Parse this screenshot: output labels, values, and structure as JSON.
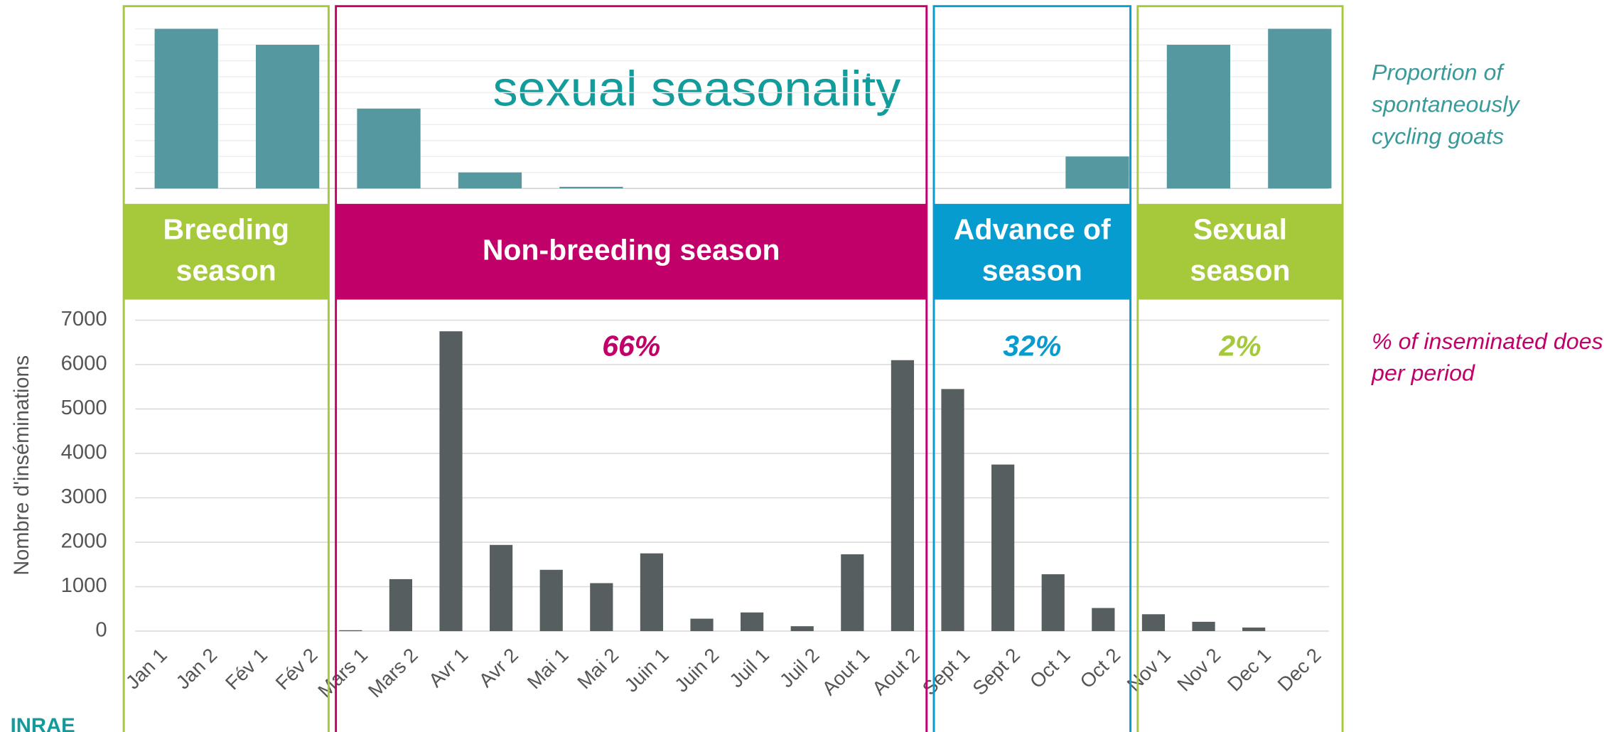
{
  "chart_data": [
    {
      "type": "bar",
      "title": "sexual seasonality",
      "values": [
        100,
        90,
        50,
        10,
        1,
        0,
        0,
        0,
        0,
        20,
        90,
        100
      ],
      "color": "#55989f",
      "ylim": [
        0,
        100
      ]
    },
    {
      "type": "bar",
      "y_label": "Nombre d'inséminations",
      "categories": [
        "Jan 1",
        "Jan 2",
        "Fév 1",
        "Fév 2",
        "Mars 1",
        "Mars 2",
        "Avr 1",
        "Avr 2",
        "Mai 1",
        "Mai 2",
        "Juin 1",
        "Juin 2",
        "Juil 1",
        "Juil 2",
        "Aout 1",
        "Aout 2",
        "Sept 1",
        "Sept 2",
        "Oct 1",
        "Oct 2",
        "Nov 1",
        "Nov 2",
        "Dec 1",
        "Dec 2"
      ],
      "values": [
        0,
        0,
        0,
        0,
        20,
        1170,
        6750,
        1940,
        1380,
        1080,
        1750,
        280,
        420,
        110,
        1730,
        6100,
        5450,
        3750,
        1280,
        520,
        380,
        210,
        80,
        0
      ],
      "color": "#575e60",
      "ylim": [
        0,
        7000
      ],
      "yticks": [
        0,
        1000,
        2000,
        3000,
        4000,
        5000,
        6000,
        7000
      ],
      "grid": true
    }
  ],
  "periods": [
    {
      "lines": [
        "Breeding",
        "season"
      ],
      "percent": null,
      "color": "#a5c93a"
    },
    {
      "lines": [
        "Non-breeding season"
      ],
      "percent": "66%",
      "color": "#c2006a"
    },
    {
      "lines": [
        "Advance of",
        "season"
      ],
      "percent": "32%",
      "color": "#069ccf"
    },
    {
      "lines": [
        "Sexual",
        "season"
      ],
      "percent": "2%",
      "color": "#a5c93a"
    }
  ],
  "notes": {
    "top": [
      "Proportion of",
      "spontaneously",
      "cycling goats"
    ],
    "bottom": [
      "% of inseminated does",
      "per period"
    ]
  },
  "logo": "INRAE"
}
